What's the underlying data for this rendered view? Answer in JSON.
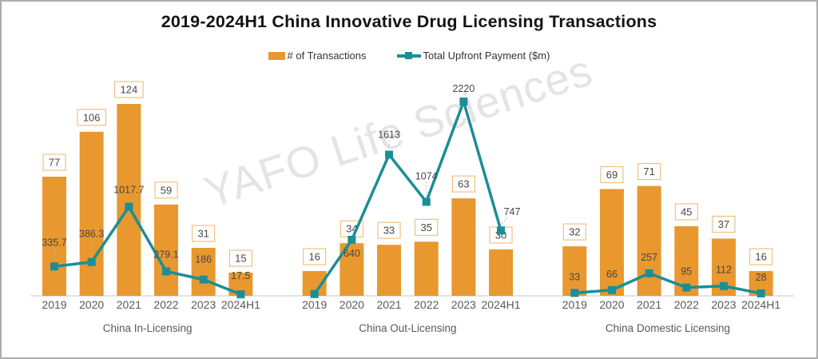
{
  "watermark": "YAFO Life Sciences",
  "colors": {
    "bar": "#E8982E",
    "bar_box_border": "#F0B469",
    "line": "#1B8E96",
    "value_text": "#474747",
    "axis_text": "#595959",
    "axis_line": "#D4D4D4",
    "leader_line": "#B8B8B8",
    "title_text": "#141414",
    "frame_border": "#ADADAD"
  },
  "chart_data": {
    "type": "bar+line combo, 3 grouped panels, shared axes",
    "title": "2019-2024H1 China Innovative Drug Licensing Transactions",
    "categories": [
      "2019",
      "2020",
      "2021",
      "2022",
      "2023",
      "2024H1"
    ],
    "series_meta": [
      {
        "name": "# of Transactions",
        "type": "bar",
        "color": "#E8982E"
      },
      {
        "name": "Total Upfront Payment ($m)",
        "type": "line",
        "color": "#1B8E96"
      }
    ],
    "groups": [
      {
        "label": "China In-Licensing",
        "transactions": [
          77,
          106,
          124,
          59,
          31,
          15
        ],
        "upfront_payment_m": [
          335.7,
          386.3,
          1017.7,
          279.1,
          186,
          17.5
        ],
        "upfront_labels": [
          "335.7",
          "386.3",
          "1017.7",
          "279.1",
          "186",
          "17.5"
        ]
      },
      {
        "label": "China Out-Licensing",
        "transactions": [
          16,
          34,
          33,
          35,
          63,
          30
        ],
        "upfront_payment_m": [
          20,
          640,
          1613,
          1074,
          2220,
          747
        ],
        "upfront_labels": [
          "",
          "640",
          "1613",
          "1074",
          "2220",
          "747"
        ]
      },
      {
        "label": "China Domestic Licensing",
        "transactions": [
          32,
          69,
          71,
          45,
          37,
          16
        ],
        "upfront_payment_m": [
          33,
          66,
          257,
          95,
          112,
          28
        ],
        "upfront_labels": [
          "33",
          "66",
          "257",
          "95",
          "112",
          "28"
        ]
      }
    ],
    "bar_axis_max": 124,
    "line_axis_max": 2220,
    "grid": false,
    "legend_position": "top-center",
    "x_axis_line": true,
    "value_labels": "bars boxed above bar, line values plain text near markers"
  }
}
